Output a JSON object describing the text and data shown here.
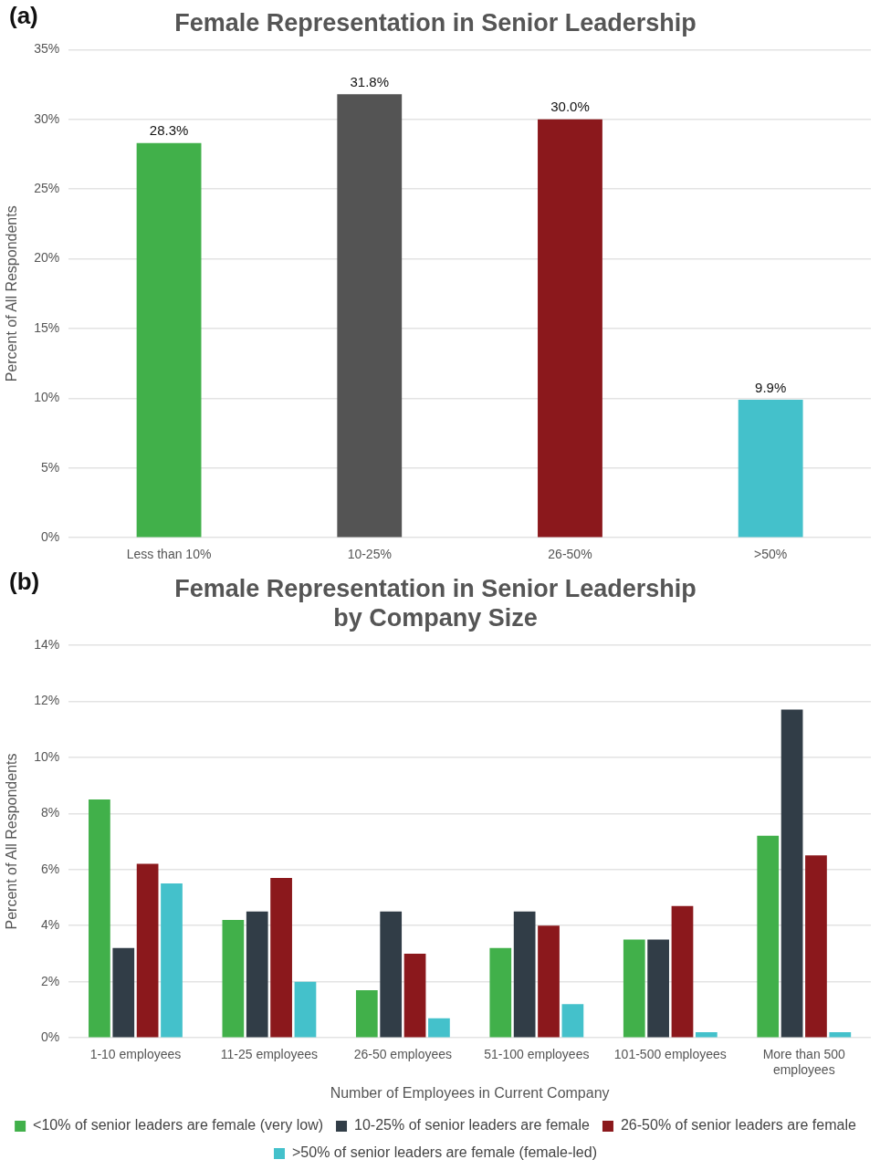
{
  "chart_data": [
    {
      "type": "bar",
      "title": "Female Representation in Senior Leadership",
      "ylabel": "Percent of All Respondents",
      "annotations": [
        "(a)"
      ],
      "categories": [
        "Less than 10%",
        "10-25%",
        "26-50%",
        ">50%"
      ],
      "values": [
        28.3,
        31.8,
        30.0,
        9.9
      ],
      "colors": [
        "#41b04a",
        "#545454",
        "#8b181c",
        "#44c1cb"
      ],
      "value_labels": [
        "28.3%",
        "31.8%",
        "30.0%",
        "9.9%"
      ],
      "ylim": [
        0,
        35
      ],
      "yticks": [
        {
          "value": 0,
          "label": "0%"
        },
        {
          "value": 5,
          "label": "5%"
        },
        {
          "value": 10,
          "label": "10%"
        },
        {
          "value": 15,
          "label": "15%"
        },
        {
          "value": 20,
          "label": "20%"
        },
        {
          "value": 25,
          "label": "25%"
        },
        {
          "value": 30,
          "label": "30%"
        },
        {
          "value": 35,
          "label": "35%"
        }
      ],
      "grid": "y",
      "legend": false
    },
    {
      "type": "bar",
      "title": "Female Representation in Senior Leadership by Company Size",
      "xlabel": "Number of Employees in Current Company",
      "ylabel": "Percent of All Respondents",
      "annotations": [
        "(b)"
      ],
      "categories": [
        "1-10 employees",
        "11-25 employees",
        "26-50 employees",
        "51-100 employees",
        "101-500 employees",
        "More than 500 employees"
      ],
      "series": [
        {
          "name": "<10% of senior leaders are female (very low)",
          "color": "#41b04a",
          "values": [
            8.5,
            4.2,
            1.7,
            3.2,
            3.5,
            7.2
          ]
        },
        {
          "name": "10-25% of senior leaders are female",
          "color": "#313d47",
          "values": [
            3.2,
            4.5,
            4.5,
            4.5,
            3.5,
            11.7
          ]
        },
        {
          "name": "26-50% of senior leaders are female",
          "color": "#8b181c",
          "values": [
            6.2,
            5.7,
            3.0,
            4.0,
            4.7,
            6.5
          ]
        },
        {
          "name": ">50% of senior leaders are female (female-led)",
          "color": "#44c1cb",
          "values": [
            5.5,
            2.0,
            0.7,
            1.2,
            0.2,
            0.2
          ]
        }
      ],
      "ylim": [
        0,
        14
      ],
      "yticks": [
        {
          "value": 0,
          "label": "0%"
        },
        {
          "value": 2,
          "label": "2%"
        },
        {
          "value": 4,
          "label": "4%"
        },
        {
          "value": 6,
          "label": "6%"
        },
        {
          "value": 8,
          "label": "8%"
        },
        {
          "value": 10,
          "label": "10%"
        },
        {
          "value": 12,
          "label": "12%"
        },
        {
          "value": 14,
          "label": "14%"
        }
      ],
      "grid": "y",
      "legend": "bottom"
    }
  ]
}
